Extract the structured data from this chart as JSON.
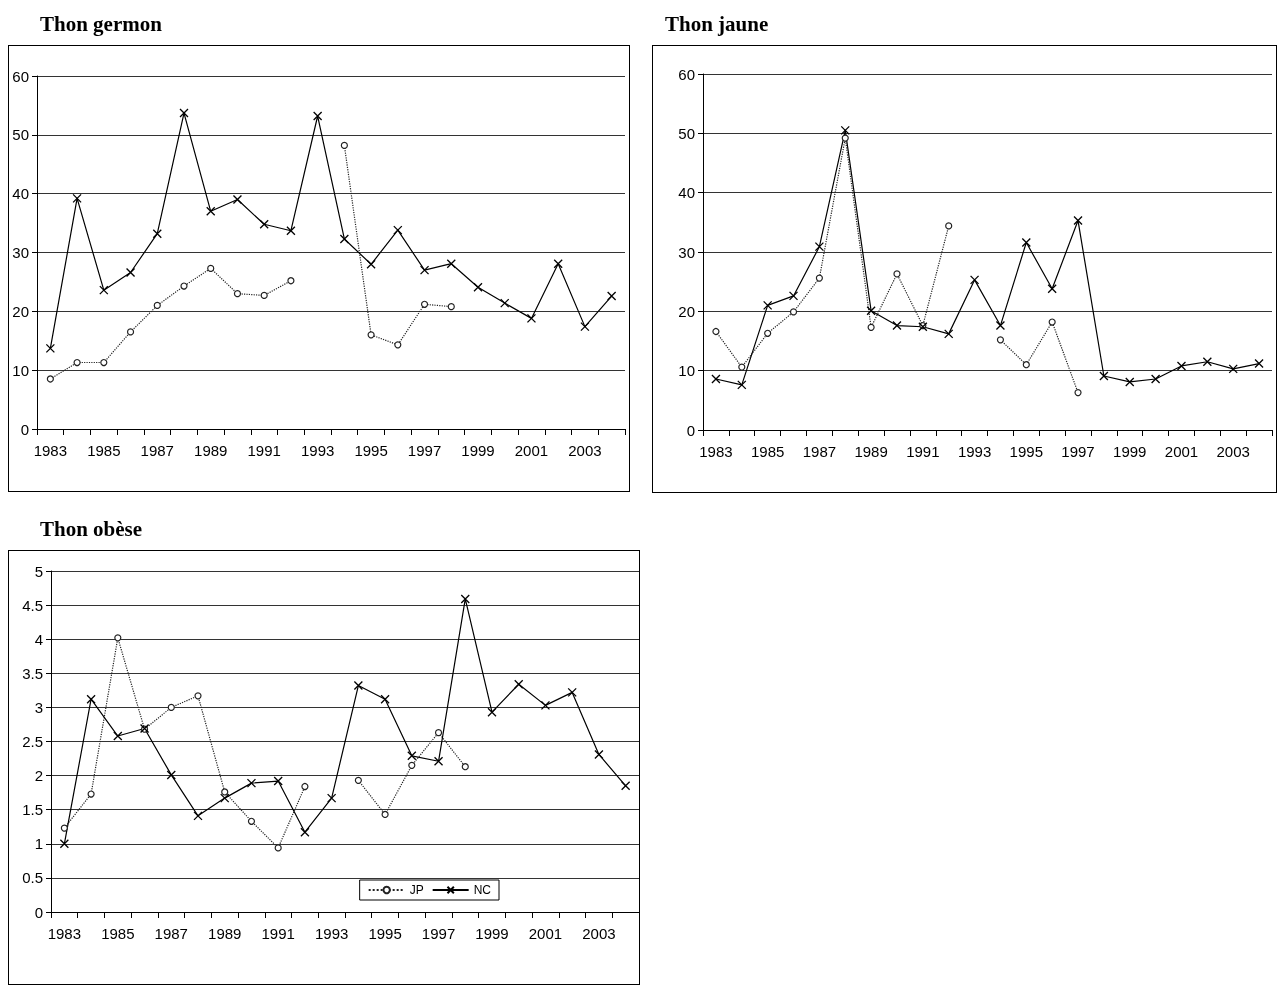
{
  "chart_data": [
    {
      "type": "line",
      "title": "Thon germon",
      "categories": [
        "1983",
        null,
        "1985",
        null,
        "1987",
        null,
        "1989",
        null,
        "1991",
        null,
        "1993",
        null,
        "1995",
        null,
        "1997",
        null,
        "1999",
        null,
        "2001",
        null,
        "2003",
        null
      ],
      "ylim": [
        0,
        60
      ],
      "yticks": [
        0,
        10,
        20,
        30,
        40,
        50,
        60
      ],
      "grid": "y",
      "legend": false,
      "series": [
        {
          "color": "#222222",
          "marker": "circle",
          "line_style": "dotted",
          "values": [
            8.5,
            11.3,
            11.3,
            16.5,
            21,
            24.3,
            27.3,
            23,
            22.7,
            25.2,
            null,
            48.2,
            16,
            14.3,
            21.2,
            20.8,
            null,
            null,
            null,
            null,
            null,
            null
          ]
        },
        {
          "color": "#000000",
          "marker": "cross",
          "line_style": "solid",
          "values": [
            13.7,
            39.2,
            23.6,
            26.6,
            33.2,
            53.7,
            37,
            39,
            34.8,
            33.7,
            53.2,
            32.3,
            28,
            33.8,
            27,
            28.1,
            24.1,
            21.4,
            18.8,
            28.1,
            17.4,
            22.6
          ]
        }
      ]
    },
    {
      "type": "line",
      "title": "Thon jaune",
      "categories": [
        "1983",
        null,
        "1985",
        null,
        "1987",
        null,
        "1989",
        null,
        "1991",
        null,
        "1993",
        null,
        "1995",
        null,
        "1997",
        null,
        "1999",
        null,
        "2001",
        null,
        "2003",
        null
      ],
      "ylim": [
        0,
        60
      ],
      "yticks": [
        0,
        10,
        20,
        30,
        40,
        50,
        60
      ],
      "grid": "y",
      "legend": false,
      "series": [
        {
          "color": "#222222",
          "marker": "circle",
          "line_style": "dotted",
          "values": [
            16.6,
            10.6,
            16.3,
            19.9,
            25.6,
            49.2,
            17.3,
            26.3,
            17.6,
            34.4,
            null,
            15.2,
            11,
            18.2,
            6.3,
            null,
            null,
            null,
            null,
            null,
            null,
            null
          ]
        },
        {
          "color": "#000000",
          "marker": "cross",
          "line_style": "solid",
          "values": [
            8.6,
            7.6,
            21,
            22.6,
            30.9,
            50.5,
            20.1,
            17.6,
            17.4,
            16.2,
            25.3,
            17.6,
            31.6,
            23.8,
            35.3,
            9.1,
            8.1,
            8.6,
            10.8,
            11.5,
            10.3,
            11.2
          ]
        }
      ]
    },
    {
      "type": "line",
      "title": "Thon obèse",
      "categories": [
        "1983",
        null,
        "1985",
        null,
        "1987",
        null,
        "1989",
        null,
        "1991",
        null,
        "1993",
        null,
        "1995",
        null,
        "1997",
        null,
        "1999",
        null,
        "2001",
        null,
        "2003",
        null
      ],
      "ylim": [
        0,
        5
      ],
      "yticks": [
        0,
        0.5,
        1,
        1.5,
        2,
        2.5,
        3,
        3.5,
        4,
        4.5,
        5
      ],
      "grid": "y",
      "legend": "bottom right",
      "series": [
        {
          "name": "JP",
          "color": "#222222",
          "marker": "circle",
          "line_style": "dotted",
          "values": [
            1.23,
            1.73,
            4.02,
            2.68,
            3.0,
            3.17,
            1.76,
            1.33,
            0.94,
            1.84,
            null,
            1.93,
            1.43,
            2.15,
            2.63,
            2.13,
            null,
            null,
            null,
            null,
            null,
            null
          ]
        },
        {
          "name": "NC",
          "color": "#000000",
          "marker": "cross",
          "line_style": "solid",
          "values": [
            1.0,
            3.12,
            2.58,
            2.69,
            2.01,
            1.41,
            1.67,
            1.89,
            1.92,
            1.17,
            1.67,
            3.32,
            3.12,
            2.29,
            2.21,
            4.59,
            2.93,
            3.34,
            3.03,
            3.22,
            2.31,
            1.85
          ]
        }
      ]
    }
  ]
}
